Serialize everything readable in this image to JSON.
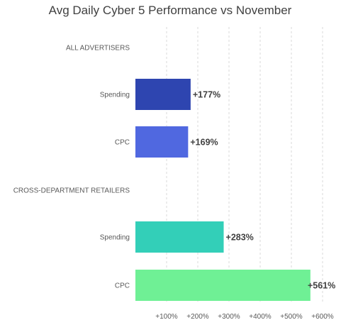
{
  "chart_data": {
    "type": "bar",
    "orientation": "horizontal",
    "title": "Avg Daily Cyber 5 Performance vs November",
    "xlabel": "",
    "ylabel": "",
    "grid": true,
    "xlim": [
      0,
      600
    ],
    "x_ticks": [
      100,
      200,
      300,
      400,
      500,
      600
    ],
    "x_tick_labels": [
      "+100%",
      "+200%",
      "+300%",
      "+400%",
      "+500%",
      "+600%"
    ],
    "rows": [
      {
        "kind": "header",
        "label": "ALL ADVERTISERS"
      },
      {
        "kind": "bar",
        "label": "Spending",
        "value": 177,
        "value_label": "+177%",
        "color": "#2e45b0"
      },
      {
        "kind": "bar",
        "label": "CPC",
        "value": 169,
        "value_label": "+169%",
        "color": "#5068e0"
      },
      {
        "kind": "header",
        "label": "CROSS-DEPARTMENT RETAILERS"
      },
      {
        "kind": "bar",
        "label": "Spending",
        "value": 283,
        "value_label": "+283%",
        "color": "#33cfb8"
      },
      {
        "kind": "bar",
        "label": "CPC",
        "value": 561,
        "value_label": "+561%",
        "color": "#6ff095"
      }
    ]
  }
}
